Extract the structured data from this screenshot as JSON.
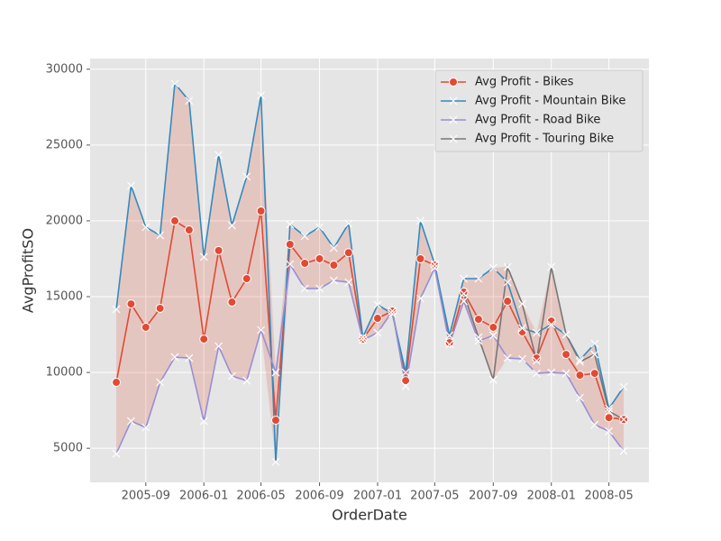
{
  "chart_data": {
    "type": "line",
    "xlabel": "OrderDate",
    "ylabel": "AvgProfitSO",
    "x": [
      "2005-07",
      "2005-08",
      "2005-09",
      "2005-10",
      "2005-11",
      "2005-12",
      "2006-01",
      "2006-02",
      "2006-03",
      "2006-04",
      "2006-05",
      "2006-06",
      "2006-07",
      "2006-08",
      "2006-09",
      "2006-10",
      "2006-11",
      "2006-12",
      "2007-01",
      "2007-02",
      "2007-03",
      "2007-04",
      "2007-05",
      "2007-06",
      "2007-07",
      "2007-08",
      "2007-09",
      "2007-10",
      "2007-11",
      "2007-12",
      "2008-01",
      "2008-02",
      "2008-03",
      "2008-04",
      "2008-05",
      "2008-06"
    ],
    "series": [
      {
        "name": "Avg Profit - Bikes",
        "color": "#E24A33",
        "marker": "circle",
        "values": [
          9350,
          14520,
          12980,
          14230,
          20000,
          19400,
          12200,
          18040,
          14640,
          16190,
          20650,
          6850,
          18450,
          17200,
          17500,
          17080,
          17900,
          12200,
          13570,
          14050,
          9460,
          17500,
          17080,
          11960,
          15300,
          13510,
          12980,
          14700,
          12680,
          10950,
          13390,
          11190,
          9820,
          9940,
          7020,
          6900
        ]
      },
      {
        "name": "Avg Profit - Mountain Bike",
        "color": "#348ABD",
        "marker": "x",
        "values": [
          14170,
          22320,
          19580,
          19050,
          29050,
          27920,
          17620,
          24350,
          19700,
          22920,
          28270,
          4110,
          19760,
          18990,
          19580,
          18210,
          19820,
          12320,
          14460,
          13870,
          10000,
          20000,
          17140,
          12440,
          16190,
          16190,
          16900,
          15950,
          12920,
          12620,
          13160,
          12500,
          10830,
          11900,
          7620,
          9050
        ]
      },
      {
        "name": "Avg Profit - Road Bike",
        "color": "#988ED5",
        "marker": "x",
        "values": [
          4640,
          6790,
          6370,
          9350,
          11010,
          10950,
          6790,
          11730,
          9760,
          9460,
          12800,
          10000,
          17140,
          15540,
          15540,
          16070,
          15950,
          12140,
          12620,
          14050,
          9100,
          14880,
          16900,
          11850,
          14700,
          12080,
          12440,
          10950,
          10890,
          9940,
          10000,
          9940,
          8330,
          6550,
          6130,
          4820
        ]
      },
      {
        "name": "Avg Profit - Touring Bike",
        "color": "#777777",
        "marker": "x",
        "values": [
          null,
          null,
          null,
          null,
          null,
          null,
          null,
          null,
          null,
          null,
          null,
          null,
          null,
          null,
          null,
          null,
          null,
          null,
          null,
          null,
          null,
          null,
          null,
          null,
          15200,
          12320,
          9520,
          16960,
          14520,
          10770,
          16960,
          12500,
          10710,
          11190,
          7440,
          6900
        ]
      }
    ],
    "fill_color": "#E24A33",
    "xlim": [
      "2005-05-07",
      "2008-07-24"
    ],
    "xticks": [
      "2005-09",
      "2006-01",
      "2006-05",
      "2006-09",
      "2007-01",
      "2007-05",
      "2007-09",
      "2008-01",
      "2008-05"
    ],
    "ylim": [
      2750,
      30700
    ],
    "yticks": [
      5000,
      10000,
      15000,
      20000,
      25000,
      30000
    ],
    "grid": true,
    "legend": "upper right"
  }
}
